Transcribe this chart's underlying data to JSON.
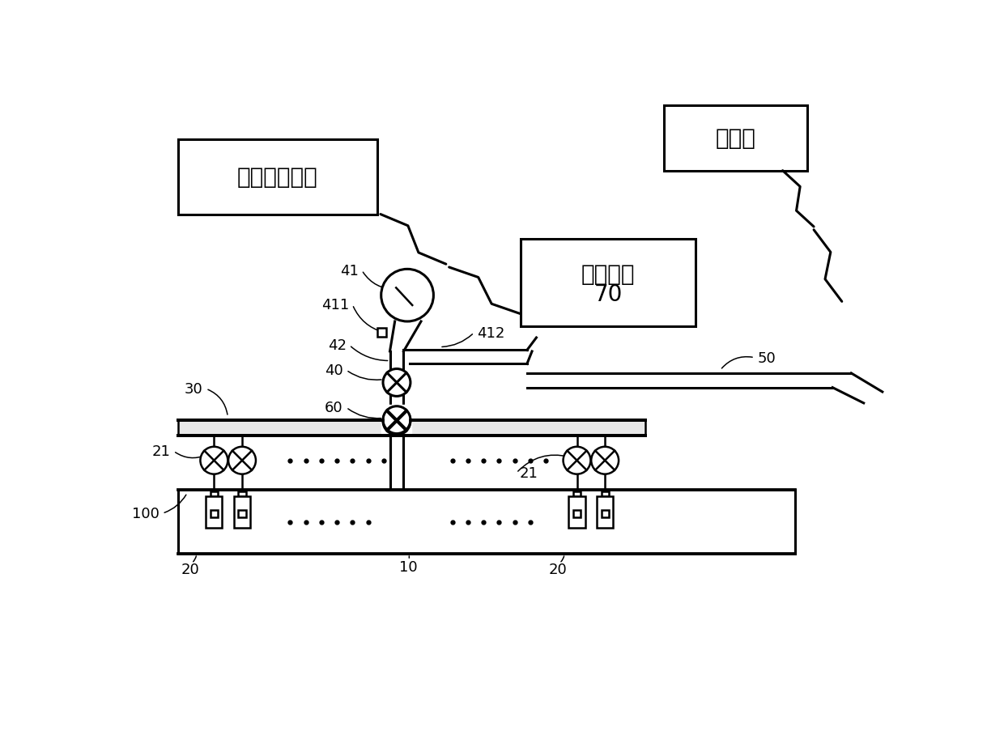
{
  "bg_color": "#ffffff",
  "line_color": "#000000",
  "box_laser_text": "激光扫描设备",
  "box_server_text": "服务器",
  "box_control_line1": "控制装置",
  "box_control_line2": "70",
  "font_size_label": 13,
  "font_size_box": 20,
  "font_size_box_sm": 18,
  "lw": 1.8,
  "lw_thick": 2.2
}
